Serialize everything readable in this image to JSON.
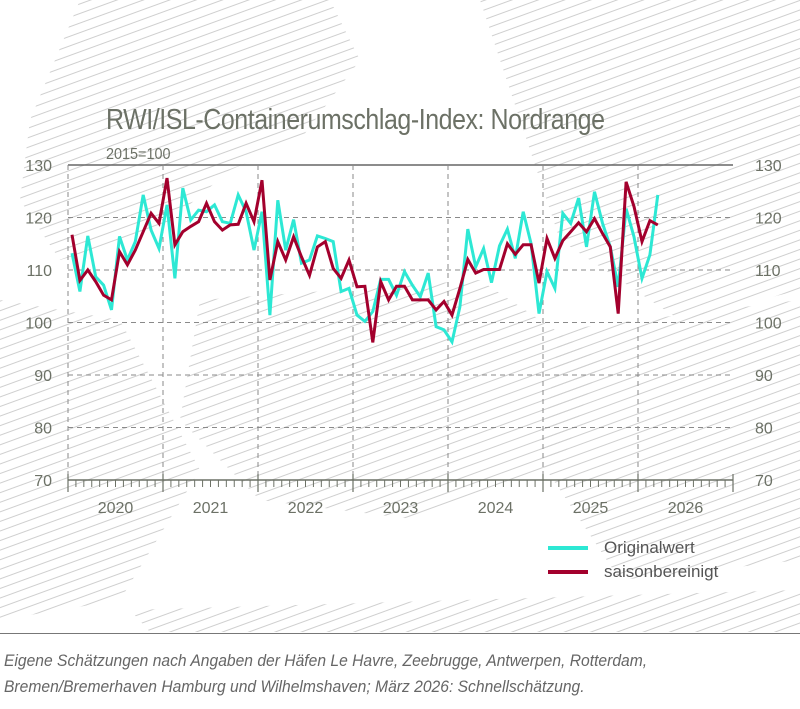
{
  "chart_data": {
    "type": "line",
    "title": "RWI/ISL-Containerumschlag-Index: Nordrange",
    "subtitle": "2015=100",
    "xlabel": "",
    "ylabel": "",
    "x_start": "2020-01",
    "x_end": "2026-03",
    "x_frequency": "monthly",
    "x_tick_labels": [
      "2020",
      "2021",
      "2022",
      "2023",
      "2024",
      "2025",
      "2026"
    ],
    "y_tick_labels": [
      "130",
      "120",
      "110",
      "100",
      "90",
      "80",
      "70"
    ],
    "ylim": [
      70,
      130
    ],
    "grid": true,
    "y_axis_both_sides": true,
    "legend_position": "bottom-right",
    "series": [
      {
        "name": "Originalwert",
        "color": "#2de8d4",
        "values": [
          113.2,
          105.9,
          116.5,
          108.7,
          107.1,
          102.4,
          116.4,
          111.9,
          115.4,
          124.3,
          117.6,
          114.1,
          122.4,
          108.4,
          125.6,
          119.5,
          121.4,
          121.1,
          122.4,
          119.2,
          118.9,
          124.3,
          121.1,
          113.8,
          121.1,
          101.4,
          123.3,
          113.8,
          119.6,
          111.3,
          111.9,
          116.5,
          116.0,
          115.4,
          105.9,
          106.5,
          101.4,
          100.2,
          102.1,
          108.2,
          108.2,
          105.2,
          109.7,
          107.1,
          104.9,
          109.4,
          99.2,
          98.6,
          96.3,
          103.0,
          117.8,
          110.6,
          114.1,
          107.6,
          114.6,
          117.8,
          112.2,
          121.1,
          115.0,
          101.7,
          109.7,
          106.5,
          120.8,
          118.9,
          123.7,
          114.4,
          124.9,
          119.0,
          114.4,
          106.8,
          121.7,
          116.3,
          108.4,
          112.9,
          124.3
        ]
      },
      {
        "name": "saisonbereinigt",
        "color": "#a3002d",
        "values": [
          116.7,
          108.0,
          110.0,
          107.8,
          105.2,
          104.3,
          113.5,
          111.0,
          113.8,
          117.3,
          120.8,
          118.9,
          127.5,
          114.8,
          117.3,
          118.3,
          119.2,
          122.7,
          119.2,
          117.6,
          118.6,
          118.7,
          122.7,
          119.2,
          127.1,
          108.1,
          115.4,
          111.9,
          116.3,
          112.5,
          109.0,
          114.4,
          115.4,
          110.3,
          108.4,
          111.9,
          106.8,
          106.9,
          96.2,
          107.8,
          104.3,
          106.9,
          106.9,
          104.3,
          104.3,
          104.3,
          102.4,
          104.0,
          101.4,
          106.5,
          112.0,
          109.4,
          110.1,
          110.1,
          110.1,
          115.0,
          113.0,
          114.8,
          114.8,
          107.5,
          116.0,
          112.2,
          115.6,
          117.3,
          119.0,
          117.3,
          119.8,
          117.0,
          114.4,
          101.7,
          126.8,
          122.1,
          115.4,
          119.4,
          118.6
        ]
      }
    ]
  },
  "footnote": {
    "line1": "Eigene Schätzungen nach Angaben der Häfen Le Havre, Zeebrugge, Antwerpen, Rotterdam,",
    "line2": "Bremen/Bremerhaven Hamburg und Wilhelmshaven; März 2026: Schnellschätzung."
  },
  "colors": {
    "text": "#6c7166",
    "grid": "#888888",
    "map": "#ececec"
  }
}
